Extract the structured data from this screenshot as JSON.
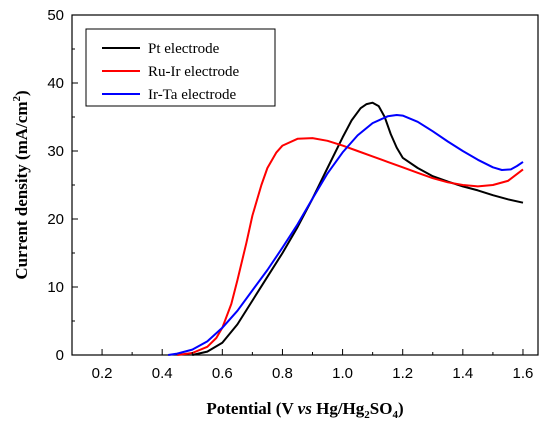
{
  "chart_data": {
    "type": "line",
    "xlabel": {
      "prefix": "Potential (V ",
      "italic": "vs",
      "mid": " Hg/Hg",
      "sub1": "2",
      "mid2": "SO",
      "sub2": "4",
      "suffix": ")"
    },
    "ylabel": {
      "prefix": "Current density (mA/cm",
      "sup": "2",
      "suffix": ")"
    },
    "xlim": [
      0.1,
      1.65
    ],
    "ylim": [
      0,
      50
    ],
    "xticks": [
      0.2,
      0.4,
      0.6,
      0.8,
      1.0,
      1.2,
      1.4,
      1.6
    ],
    "xtick_labels": [
      "0.2",
      "0.4",
      "0.6",
      "0.8",
      "1.0",
      "1.2",
      "1.4",
      "1.6"
    ],
    "yticks": [
      0,
      10,
      20,
      30,
      40,
      50
    ],
    "ytick_labels": [
      "0",
      "10",
      "20",
      "30",
      "40",
      "50"
    ],
    "legend_position": "top-left",
    "grid": false,
    "series": [
      {
        "name": "Pt electrode",
        "color": "#000000",
        "x": [
          0.5,
          0.55,
          0.6,
          0.65,
          0.7,
          0.75,
          0.8,
          0.85,
          0.9,
          0.95,
          1.0,
          1.03,
          1.06,
          1.08,
          1.1,
          1.12,
          1.14,
          1.16,
          1.18,
          1.2,
          1.25,
          1.3,
          1.35,
          1.4,
          1.45,
          1.5,
          1.55,
          1.6
        ],
        "y": [
          0,
          0.5,
          1.8,
          4.5,
          8,
          11.5,
          15,
          18.8,
          23,
          27.5,
          32,
          34.5,
          36.3,
          36.9,
          37.1,
          36.6,
          35,
          32.5,
          30.5,
          29,
          27.5,
          26.3,
          25.5,
          24.8,
          24.2,
          23.5,
          22.9,
          22.4
        ]
      },
      {
        "name": "Ru-Ir electrode",
        "color": "#ff0000",
        "x": [
          0.45,
          0.5,
          0.55,
          0.58,
          0.6,
          0.63,
          0.65,
          0.68,
          0.7,
          0.73,
          0.75,
          0.78,
          0.8,
          0.85,
          0.9,
          0.95,
          1.0,
          1.05,
          1.1,
          1.15,
          1.2,
          1.25,
          1.3,
          1.35,
          1.4,
          1.45,
          1.5,
          1.55,
          1.6
        ],
        "y": [
          0,
          0.3,
          1.2,
          2.5,
          4,
          7.5,
          11,
          16.5,
          20.5,
          25,
          27.5,
          29.8,
          30.8,
          31.8,
          31.9,
          31.5,
          30.8,
          30,
          29.2,
          28.4,
          27.6,
          26.8,
          26,
          25.4,
          25,
          24.8,
          25,
          25.6,
          27.3
        ]
      },
      {
        "name": "Ir-Ta electrode",
        "color": "#0000ff",
        "x": [
          0.42,
          0.45,
          0.5,
          0.55,
          0.6,
          0.65,
          0.7,
          0.75,
          0.8,
          0.85,
          0.9,
          0.95,
          1.0,
          1.05,
          1.1,
          1.15,
          1.18,
          1.2,
          1.25,
          1.3,
          1.35,
          1.4,
          1.45,
          1.5,
          1.53,
          1.56,
          1.58,
          1.6
        ],
        "y": [
          0,
          0.2,
          0.8,
          2,
          4,
          6.5,
          9.5,
          12.5,
          15.8,
          19.2,
          23,
          26.7,
          29.8,
          32.3,
          34.1,
          35.1,
          35.3,
          35.2,
          34.3,
          32.9,
          31.4,
          30,
          28.7,
          27.6,
          27.2,
          27.3,
          27.8,
          28.4
        ]
      }
    ]
  }
}
